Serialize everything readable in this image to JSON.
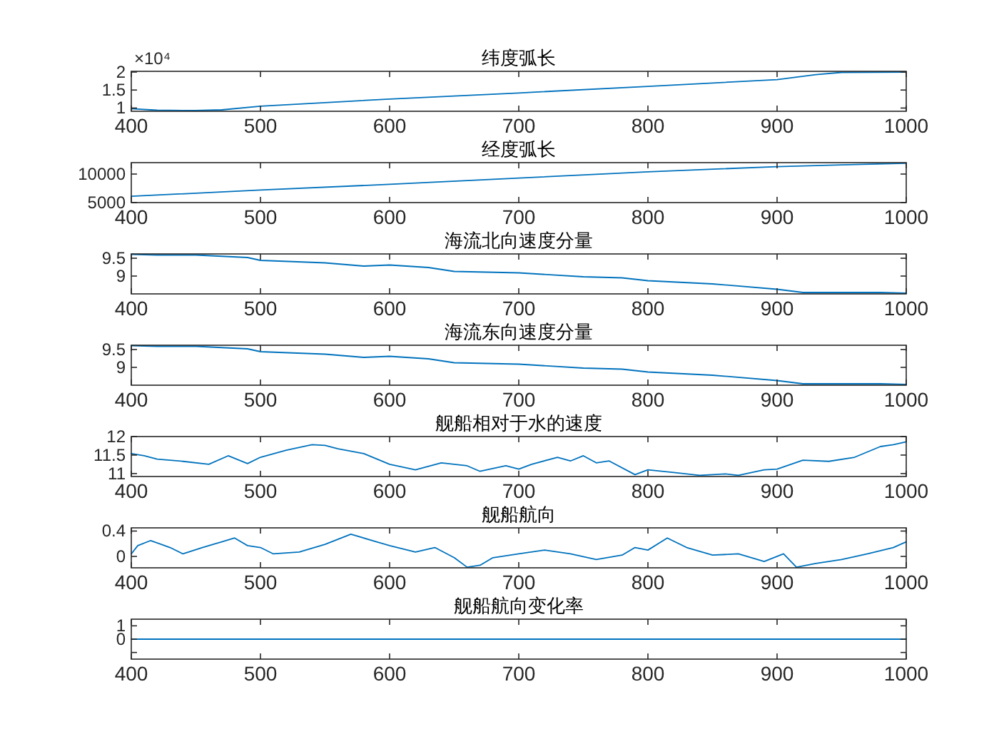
{
  "chart_data": [
    {
      "type": "line",
      "title": "纬度弧长",
      "annotations": [
        "×10⁴"
      ],
      "color": "#0072bd",
      "x": [
        400,
        420,
        450,
        470,
        500,
        600,
        700,
        800,
        900,
        930,
        950,
        1000
      ],
      "values": [
        0.98,
        0.94,
        0.93,
        0.95,
        1.05,
        1.25,
        1.42,
        1.6,
        1.79,
        1.93,
        1.99,
        2.0
      ],
      "xlim": [
        400,
        1000
      ],
      "xticks": [
        400,
        500,
        600,
        700,
        800,
        900,
        1000
      ],
      "ylim": [
        0.91,
        2.02
      ],
      "yticks": [
        1,
        1.5,
        2
      ],
      "marker": "none",
      "line_style": "solid"
    },
    {
      "type": "line",
      "title": "经度弧长",
      "color": "#0072bd",
      "x": [
        400,
        500,
        600,
        700,
        800,
        900,
        950,
        1000
      ],
      "values": [
        6100,
        7200,
        8200,
        9300,
        10400,
        11300,
        11600,
        11900
      ],
      "xlim": [
        400,
        1000
      ],
      "xticks": [
        400,
        500,
        600,
        700,
        800,
        900,
        1000
      ],
      "ylim": [
        5000,
        12000
      ],
      "yticks": [
        5000,
        10000
      ],
      "marker": "none",
      "line_style": "solid"
    },
    {
      "type": "line",
      "title": "海流北向速度分量",
      "color": "#0072bd",
      "x": [
        400,
        420,
        450,
        490,
        500,
        550,
        580,
        600,
        630,
        650,
        700,
        750,
        780,
        800,
        850,
        900,
        920,
        950,
        980,
        1000
      ],
      "values": [
        9.61,
        9.59,
        9.59,
        9.52,
        9.44,
        9.37,
        9.28,
        9.31,
        9.24,
        9.13,
        9.09,
        8.98,
        8.95,
        8.87,
        8.78,
        8.63,
        8.54,
        8.54,
        8.54,
        8.52
      ],
      "xlim": [
        400,
        1000
      ],
      "xticks": [
        400,
        500,
        600,
        700,
        800,
        900,
        1000
      ],
      "ylim": [
        8.5,
        9.62
      ],
      "yticks": [
        9,
        9.5
      ],
      "marker": "none",
      "line_style": "solid"
    },
    {
      "type": "line",
      "title": "海流东向速度分量",
      "color": "#0072bd",
      "x": [
        400,
        420,
        450,
        490,
        500,
        550,
        580,
        600,
        630,
        650,
        700,
        750,
        780,
        800,
        850,
        900,
        920,
        950,
        980,
        1000
      ],
      "values": [
        9.61,
        9.59,
        9.59,
        9.52,
        9.44,
        9.37,
        9.28,
        9.31,
        9.24,
        9.13,
        9.09,
        8.98,
        8.95,
        8.87,
        8.78,
        8.63,
        8.54,
        8.54,
        8.54,
        8.52
      ],
      "xlim": [
        400,
        1000
      ],
      "xticks": [
        400,
        500,
        600,
        700,
        800,
        900,
        1000
      ],
      "ylim": [
        8.5,
        9.62
      ],
      "yticks": [
        9,
        9.5
      ],
      "marker": "none",
      "line_style": "solid"
    },
    {
      "type": "line",
      "title": "舰船相对于水的速度",
      "color": "#0072bd",
      "x": [
        400,
        410,
        420,
        440,
        460,
        475,
        490,
        500,
        520,
        540,
        550,
        560,
        580,
        600,
        620,
        640,
        660,
        670,
        690,
        700,
        710,
        730,
        740,
        750,
        760,
        770,
        790,
        800,
        820,
        840,
        860,
        870,
        890,
        900,
        920,
        940,
        960,
        980,
        990,
        1000
      ],
      "values": [
        11.54,
        11.48,
        11.39,
        11.33,
        11.25,
        11.48,
        11.27,
        11.44,
        11.63,
        11.78,
        11.76,
        11.67,
        11.54,
        11.25,
        11.1,
        11.29,
        11.21,
        11.06,
        11.21,
        11.12,
        11.25,
        11.44,
        11.34,
        11.48,
        11.29,
        11.34,
        10.97,
        11.1,
        11.03,
        10.95,
        10.99,
        10.95,
        11.1,
        11.12,
        11.36,
        11.33,
        11.44,
        11.73,
        11.78,
        11.86
      ],
      "xlim": [
        400,
        1000
      ],
      "xticks": [
        400,
        500,
        600,
        700,
        800,
        900,
        1000
      ],
      "ylim": [
        10.92,
        12
      ],
      "yticks": [
        11,
        11.5,
        12
      ],
      "marker": "none",
      "line_style": "solid"
    },
    {
      "type": "line",
      "title": "舰船航向",
      "color": "#0072bd",
      "x": [
        400,
        405,
        415,
        430,
        440,
        455,
        470,
        480,
        490,
        500,
        510,
        530,
        550,
        570,
        590,
        600,
        620,
        635,
        650,
        660,
        670,
        680,
        700,
        720,
        740,
        760,
        780,
        790,
        800,
        815,
        830,
        850,
        870,
        890,
        905,
        915,
        930,
        950,
        970,
        990,
        1000
      ],
      "values": [
        0.04,
        0.17,
        0.25,
        0.14,
        0.04,
        0.14,
        0.23,
        0.29,
        0.17,
        0.14,
        0.04,
        0.07,
        0.19,
        0.35,
        0.23,
        0.17,
        0.07,
        0.14,
        -0.02,
        -0.17,
        -0.14,
        -0.02,
        0.04,
        0.1,
        0.04,
        -0.05,
        0.02,
        0.14,
        0.1,
        0.29,
        0.14,
        0.02,
        0.04,
        -0.08,
        0.04,
        -0.17,
        -0.11,
        -0.05,
        0.04,
        0.14,
        0.23
      ],
      "xlim": [
        400,
        1000
      ],
      "xticks": [
        400,
        500,
        600,
        700,
        800,
        900,
        1000
      ],
      "ylim": [
        -0.18,
        0.45
      ],
      "yticks": [
        0,
        0.4
      ],
      "marker": "none",
      "line_style": "solid"
    },
    {
      "type": "line",
      "title": "舰船航向变化率",
      "color": "#0072bd",
      "x": [
        400,
        1000
      ],
      "values": [
        0,
        0
      ],
      "xlim": [
        400,
        1000
      ],
      "xticks": [
        400,
        500,
        600,
        700,
        800,
        900,
        1000
      ],
      "ylim": [
        -1.5,
        1.5
      ],
      "yticks": [
        {
          "value": -1,
          "label": null
        },
        0,
        1
      ],
      "marker": "none",
      "line_style": "solid"
    }
  ]
}
